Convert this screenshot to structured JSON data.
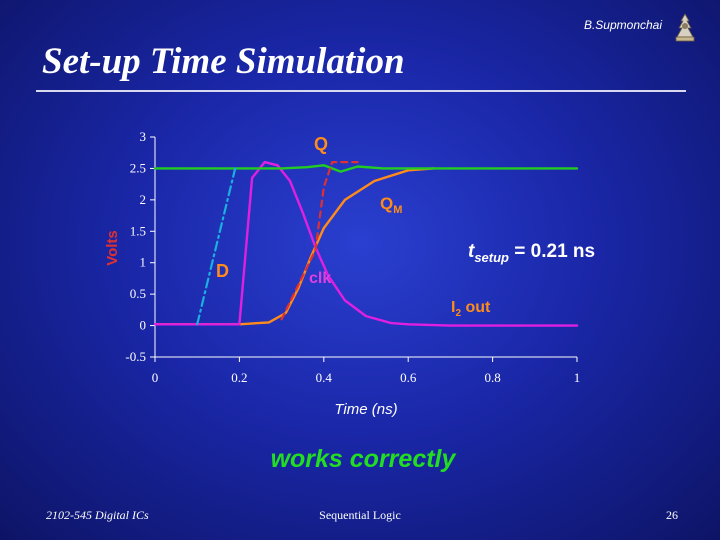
{
  "slide": {
    "title": "Set-up Time Simulation",
    "author": "B.Supmonchai",
    "note": "works correctly",
    "footer_left": "2102-545 Digital ICs",
    "footer_center": "Sequential Logic",
    "page_number": "26"
  },
  "chart_data": {
    "type": "line",
    "title": "",
    "xlabel": "Time (ns)",
    "ylabel": "Volts",
    "xlim": [
      0,
      1
    ],
    "ylim": [
      -0.5,
      3
    ],
    "x_ticks": [
      0,
      0.2,
      0.4,
      0.6,
      0.8,
      1
    ],
    "x_tick_labels": [
      "0",
      "0.2",
      "0.4",
      "0.6",
      "0.8",
      "1"
    ],
    "y_ticks": [
      3,
      2.5,
      2,
      1.5,
      1,
      0.5,
      0,
      -0.5
    ],
    "y_tick_labels": [
      "3",
      "2.5",
      "2",
      "1.5",
      "1",
      "0.5",
      "0",
      "-0.5"
    ],
    "grid": false,
    "series": [
      {
        "name": "D",
        "color": "#1ab0e0",
        "dash": "dash-dot",
        "x": [
          0.1,
          0.19
        ],
        "y": [
          0.02,
          2.5
        ]
      },
      {
        "name": "clk",
        "color": "#e03030",
        "dash": "dashed",
        "x": [
          0.3,
          0.38,
          0.4,
          0.42,
          0.48
        ],
        "y": [
          0.1,
          1.2,
          2.2,
          2.6,
          2.6
        ]
      },
      {
        "name": "Q",
        "color": "#22cc22",
        "dash": "solid",
        "x": [
          0,
          0.3,
          0.36,
          0.4,
          0.44,
          0.48,
          0.54,
          1
        ],
        "y": [
          2.5,
          2.5,
          2.52,
          2.55,
          2.45,
          2.53,
          2.5,
          2.5
        ]
      },
      {
        "name": "QM",
        "color": "#ff8c1a",
        "dash": "solid",
        "x": [
          0,
          0.1,
          0.2,
          0.27,
          0.31,
          0.34,
          0.37,
          0.4,
          0.45,
          0.52,
          0.6,
          0.66
        ],
        "y": [
          0.02,
          0.02,
          0.02,
          0.05,
          0.2,
          0.6,
          1.1,
          1.55,
          2.0,
          2.3,
          2.47,
          2.5
        ]
      },
      {
        "name": "I2 out",
        "color": "#e020e0",
        "dash": "solid",
        "x": [
          0,
          0.2,
          0.23,
          0.26,
          0.29,
          0.32,
          0.35,
          0.38,
          0.41,
          0.45,
          0.5,
          0.56,
          0.6,
          0.7,
          1
        ],
        "y": [
          0.02,
          0.02,
          2.35,
          2.6,
          2.55,
          2.3,
          1.8,
          1.25,
          0.8,
          0.4,
          0.15,
          0.04,
          0.02,
          0.0,
          0.0
        ]
      }
    ],
    "labels": {
      "Q": "Q",
      "QM_main": "Q",
      "QM_sub": "M",
      "D": "D",
      "clk": "clk",
      "I2_main": "I",
      "I2_sub": "2",
      "I2_rest": " out",
      "tsetup_main": "t",
      "tsetup_sub": "setup",
      "tsetup_rest": " = 0.21 ns"
    }
  }
}
